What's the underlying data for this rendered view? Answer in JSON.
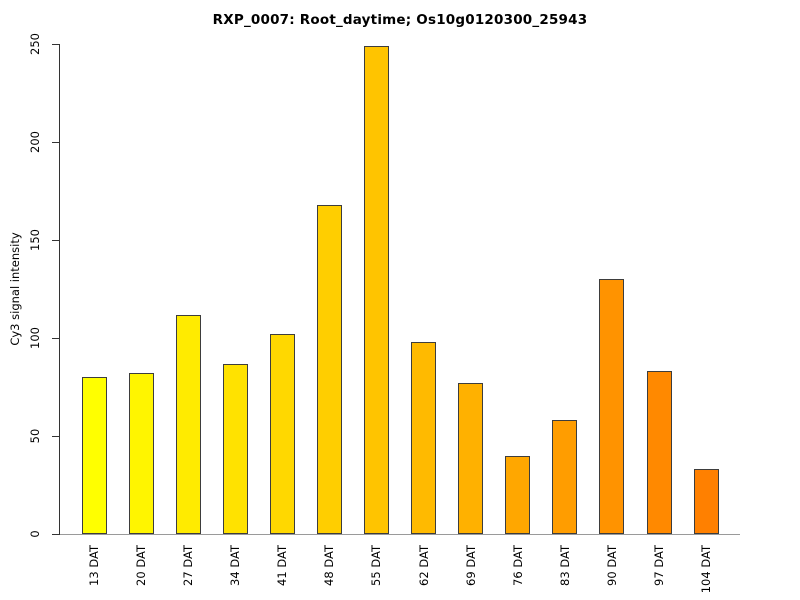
{
  "chart_data": {
    "type": "bar",
    "title": "RXP_0007: Root_daytime; Os10g0120300_25943",
    "xlabel": "",
    "ylabel": "Cy3 signal intensity",
    "categories": [
      "13 DAT",
      "20 DAT",
      "27 DAT",
      "34 DAT",
      "41 DAT",
      "48 DAT",
      "55 DAT",
      "62 DAT",
      "69 DAT",
      "76 DAT",
      "83 DAT",
      "90 DAT",
      "97 DAT",
      "104 DAT"
    ],
    "values": [
      80,
      82,
      112,
      87,
      102,
      168,
      249,
      98,
      77,
      40,
      58,
      130,
      83,
      33
    ],
    "bar_colors": [
      "#FFFF00",
      "#FFF500",
      "#FFEB00",
      "#FFE200",
      "#FFD800",
      "#FFCE00",
      "#FFC400",
      "#FFBA00",
      "#FFB100",
      "#FFA700",
      "#FF9D00",
      "#FF9300",
      "#FF8900",
      "#FF8000"
    ],
    "ylim": [
      0,
      250
    ],
    "yticks": [
      0,
      50,
      100,
      150,
      200,
      250
    ],
    "grid": false,
    "legend": false,
    "bar_border_color": "#3d3d3d",
    "axis_color": "#333333"
  }
}
